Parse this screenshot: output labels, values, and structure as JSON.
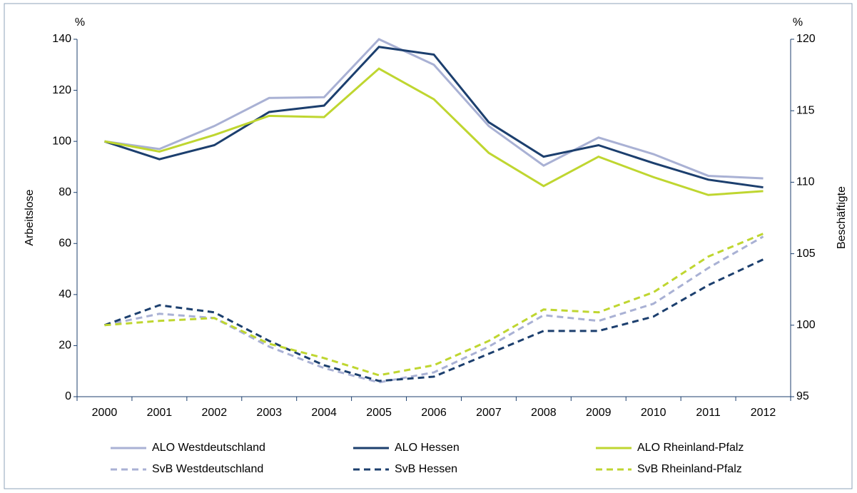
{
  "chart_data": {
    "type": "line",
    "y_label": "Arbeitslose",
    "y2_label": "Beschäftigte",
    "y_unit": "%",
    "y2_unit": "%",
    "categories": [
      "2000",
      "2001",
      "2002",
      "2003",
      "2004",
      "2005",
      "2006",
      "2007",
      "2008",
      "2009",
      "2010",
      "2011",
      "2012"
    ],
    "ylim": [
      0,
      140
    ],
    "yticks": [
      0,
      20,
      40,
      60,
      80,
      100,
      120,
      140
    ],
    "y2lim": [
      95,
      120
    ],
    "y2ticks": [
      95,
      100,
      105,
      110,
      115,
      120
    ],
    "legend": "bottom",
    "series": [
      {
        "name": "ALO Westdeutschland",
        "color": "#a9b1d4",
        "dashed": false,
        "values": [
          100,
          97,
          106,
          117,
          117.3,
          140,
          130,
          106,
          90.5,
          101.5,
          95,
          86.5,
          85.5
        ]
      },
      {
        "name": "ALO Hessen",
        "color": "#1c3f6e",
        "dashed": false,
        "values": [
          100,
          93,
          98.5,
          111.5,
          114,
          137,
          134,
          107.5,
          94,
          98.5,
          91.5,
          85,
          82
        ]
      },
      {
        "name": "ALO Rheinland-Pfalz",
        "color": "#bfd630",
        "dashed": false,
        "values": [
          100,
          96,
          102.5,
          110,
          109.5,
          128.5,
          116.5,
          95.5,
          82.5,
          94,
          86,
          79,
          80.5
        ]
      },
      {
        "name": "SvB Westdeutschland",
        "color": "#a9b1d4",
        "dashed": true,
        "axis": "y2",
        "values": [
          100,
          100.8,
          100.5,
          98.5,
          97,
          96,
          96.7,
          98.5,
          100.7,
          100.3,
          101.5,
          104,
          106.2
        ]
      },
      {
        "name": "SvB Hessen",
        "color": "#1c3f6e",
        "dashed": true,
        "axis": "y2",
        "values": [
          100,
          101.4,
          100.9,
          98.9,
          97.2,
          96.1,
          96.4,
          98,
          99.6,
          99.6,
          100.6,
          102.8,
          104.6
        ]
      },
      {
        "name": "SvB Rheinland-Pfalz",
        "color": "#bfd630",
        "dashed": true,
        "axis": "y2",
        "values": [
          100,
          100.3,
          100.5,
          98.7,
          97.7,
          96.5,
          97.2,
          98.9,
          101.1,
          100.9,
          102.3,
          104.8,
          106.4
        ]
      }
    ]
  }
}
